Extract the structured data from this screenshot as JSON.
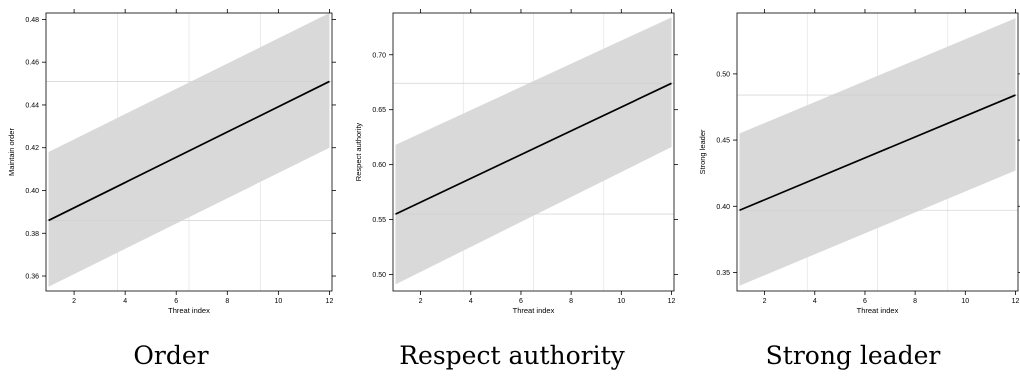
{
  "chart_data": [
    {
      "type": "line",
      "caption": "Order",
      "xlabel": "Threat index",
      "ylabel": "Maintain order",
      "xlim": [
        0.9,
        12.1
      ],
      "ylim": [
        0.353,
        0.483
      ],
      "xticks": [
        2,
        4,
        6,
        8,
        10,
        12
      ],
      "yticks": [
        0.36,
        0.38,
        0.4,
        0.42,
        0.44,
        0.46,
        0.48
      ],
      "ytick_labels": [
        "0.36",
        "0.38",
        "0.40",
        "0.42",
        "0.44",
        "0.46",
        "0.48"
      ],
      "x": [
        1,
        12
      ],
      "y": [
        0.386,
        0.451
      ],
      "lower": [
        0.355,
        0.42
      ],
      "upper": [
        0.418,
        0.483
      ],
      "ref_y": [
        0.386,
        0.451
      ],
      "grid": true
    },
    {
      "type": "line",
      "caption": "Respect authority",
      "xlabel": "Threat index",
      "ylabel": "Respect authority",
      "xlim": [
        0.9,
        12.1
      ],
      "ylim": [
        0.485,
        0.738
      ],
      "xticks": [
        2,
        4,
        6,
        8,
        10,
        12
      ],
      "yticks": [
        0.5,
        0.55,
        0.6,
        0.65,
        0.7
      ],
      "ytick_labels": [
        "0.50",
        "0.55",
        "0.60",
        "0.65",
        "0.70"
      ],
      "x": [
        1,
        12
      ],
      "y": [
        0.555,
        0.674
      ],
      "lower": [
        0.491,
        0.616
      ],
      "upper": [
        0.618,
        0.734
      ],
      "ref_y": [
        0.555,
        0.674
      ],
      "grid": true
    },
    {
      "type": "line",
      "caption": "Strong leader",
      "xlabel": "Threat index",
      "ylabel": "Strong leader",
      "xlim": [
        0.9,
        12.1
      ],
      "ylim": [
        0.336,
        0.546
      ],
      "xticks": [
        2,
        4,
        6,
        8,
        10,
        12
      ],
      "yticks": [
        0.35,
        0.4,
        0.45,
        0.5
      ],
      "ytick_labels": [
        "0.35",
        "0.40",
        "0.45",
        "0.50"
      ],
      "x": [
        1,
        12
      ],
      "y": [
        0.397,
        0.484
      ],
      "lower": [
        0.34,
        0.427
      ],
      "upper": [
        0.455,
        0.542
      ],
      "ref_y": [
        0.397,
        0.484
      ],
      "grid": true
    }
  ],
  "colors": {
    "band": "#d9d9d9",
    "line": "#000000",
    "grid": "#e6e6e6",
    "frame": "#000000"
  }
}
